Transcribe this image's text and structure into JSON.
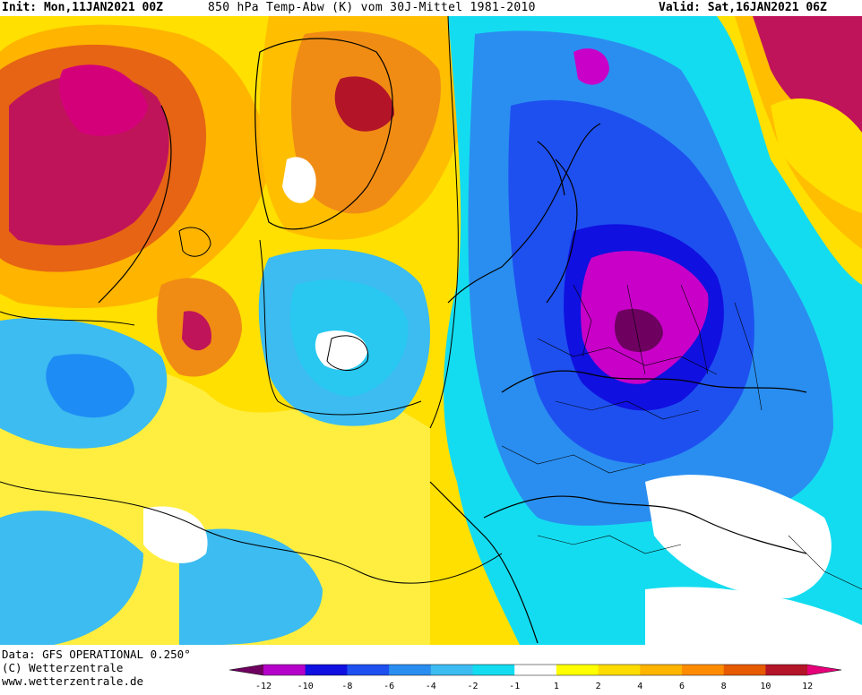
{
  "header": {
    "init": "Init: Mon,11JAN2021 00Z",
    "title": "850 hPa Temp-Abw (K) vom 30J-Mittel 1981-2010",
    "valid": "Valid: Sat,16JAN2021 06Z"
  },
  "footer": {
    "data_source": "Data: GFS OPERATIONAL 0.250°",
    "copyright": "(C) Wetterzentrale",
    "website": "www.wetterzentrale.de"
  },
  "legend": {
    "ticks": [
      "-12",
      "-10",
      "-8",
      "-6",
      "-4",
      "-2",
      "-1",
      "1",
      "2",
      "4",
      "6",
      "8",
      "10",
      "12"
    ],
    "colors": [
      "#6e0060",
      "#b400c8",
      "#1010e0",
      "#1e50f0",
      "#2a8ef0",
      "#3cbcf0",
      "#14dcf0",
      "#ffffff",
      "#ffff00",
      "#ffdc00",
      "#ffb400",
      "#ff8c00",
      "#e65a00",
      "#b41428",
      "#e6007a"
    ]
  },
  "palette": {
    "anomaly_colors": {
      "minus_12_plus": "#6e0060",
      "minus_12_to_10": "#c800c8",
      "minus_10_to_8": "#2828e6",
      "minus_8_to_6": "#1e5af0",
      "minus_6_to_4": "#1e8cf5",
      "minus_4_to_2": "#28bef0",
      "minus_2_to_1": "#00e6f0",
      "neutral": "#ffffff",
      "plus_1_to_2": "#ffff40",
      "plus_2_to_4": "#ffdc00",
      "plus_4_to_6": "#ffbe00",
      "plus_6_to_8": "#f08c14",
      "plus_8_to_10": "#d25a14",
      "plus_10_plus": "#c0145a"
    }
  }
}
